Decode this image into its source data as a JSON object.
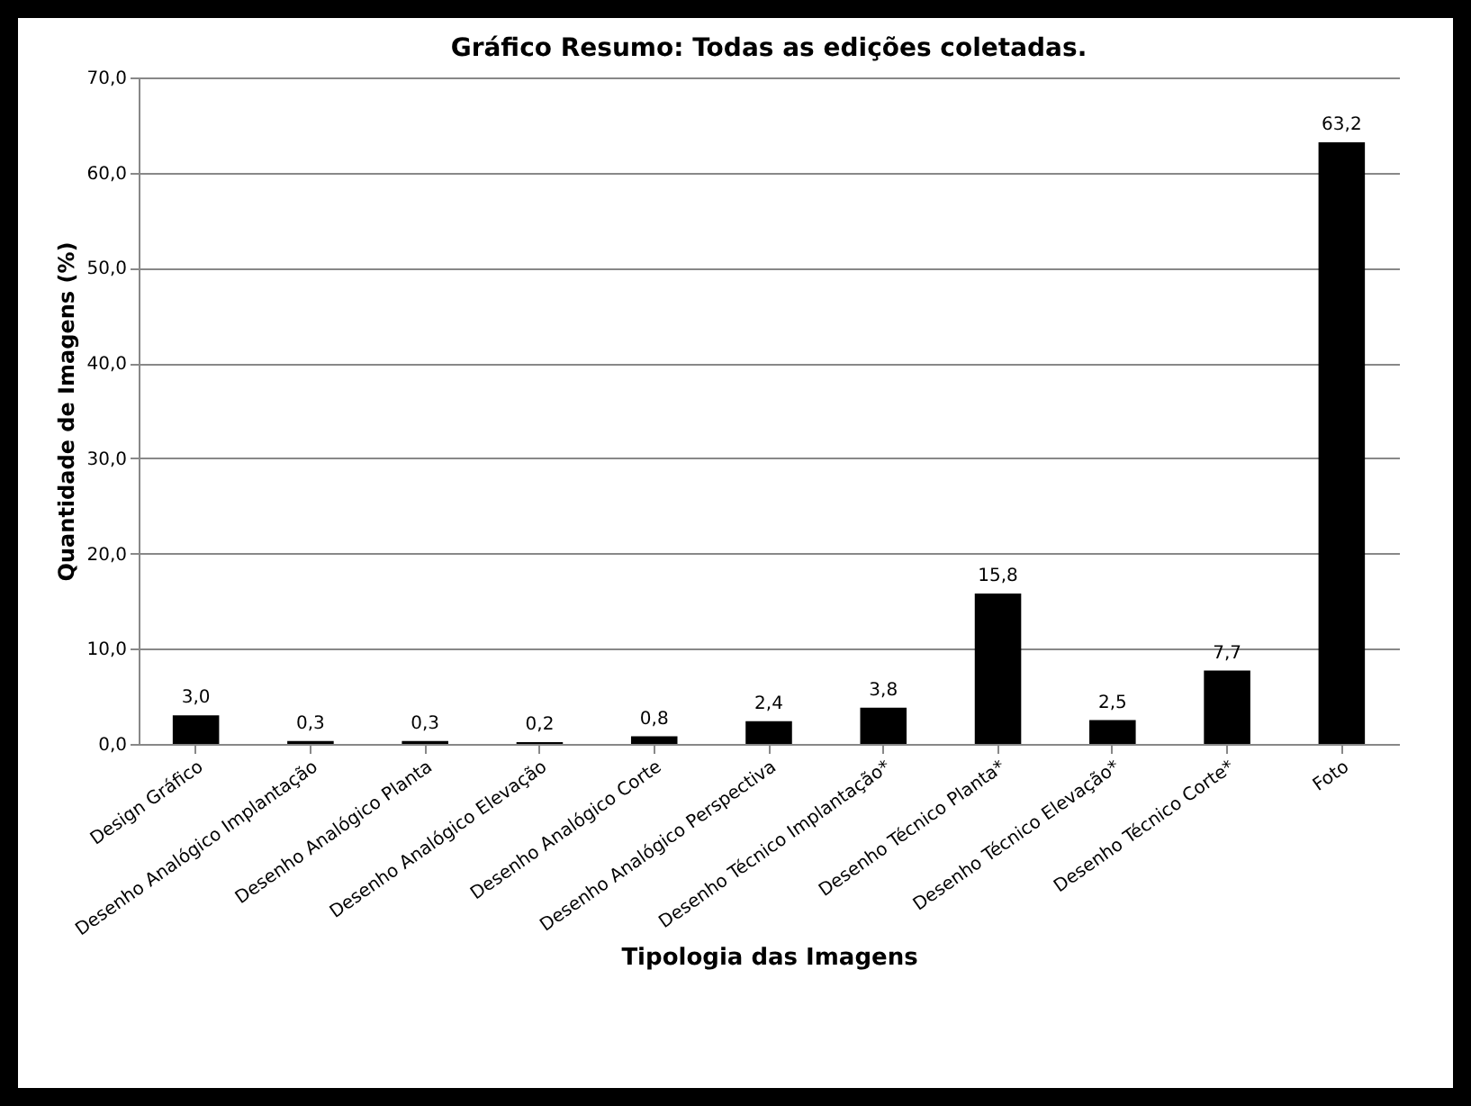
{
  "chart_data": {
    "type": "bar",
    "title": "Gráfico Resumo: Todas as edições coletadas.",
    "xlabel": "Tipologia das Imagens",
    "ylabel": "Quantidade de Imagens (%)",
    "categories": [
      "Design Gráfico",
      "Desenho Analógico Implantação",
      "Desenho Analógico Planta",
      "Desenho Analógico Elevação",
      "Desenho Analógico Corte",
      "Desenho Analógico Perspectiva",
      "Desenho Técnico Implantação*",
      "Desenho Técnico Planta*",
      "Desenho Técnico Elevação*",
      "Desenho Técnico Corte*",
      "Foto"
    ],
    "values": [
      3.0,
      0.3,
      0.3,
      0.2,
      0.8,
      2.4,
      3.8,
      15.8,
      2.5,
      7.7,
      63.2
    ],
    "value_labels": [
      "3,0",
      "0,3",
      "0,3",
      "0,2",
      "0,8",
      "2,4",
      "3,8",
      "15,8",
      "2,5",
      "7,7",
      "63,2"
    ],
    "color": "#000000",
    "ylim": [
      0,
      70
    ],
    "yticks": [
      {
        "value": 0,
        "label": "0,0"
      },
      {
        "value": 10,
        "label": "10,0"
      },
      {
        "value": 20,
        "label": "20,0"
      },
      {
        "value": 30,
        "label": "30,0"
      },
      {
        "value": 40,
        "label": "40,0"
      },
      {
        "value": 50,
        "label": "50,0"
      },
      {
        "value": 60,
        "label": "60,0"
      },
      {
        "value": 70,
        "label": "70,0"
      }
    ],
    "grid": "y"
  }
}
